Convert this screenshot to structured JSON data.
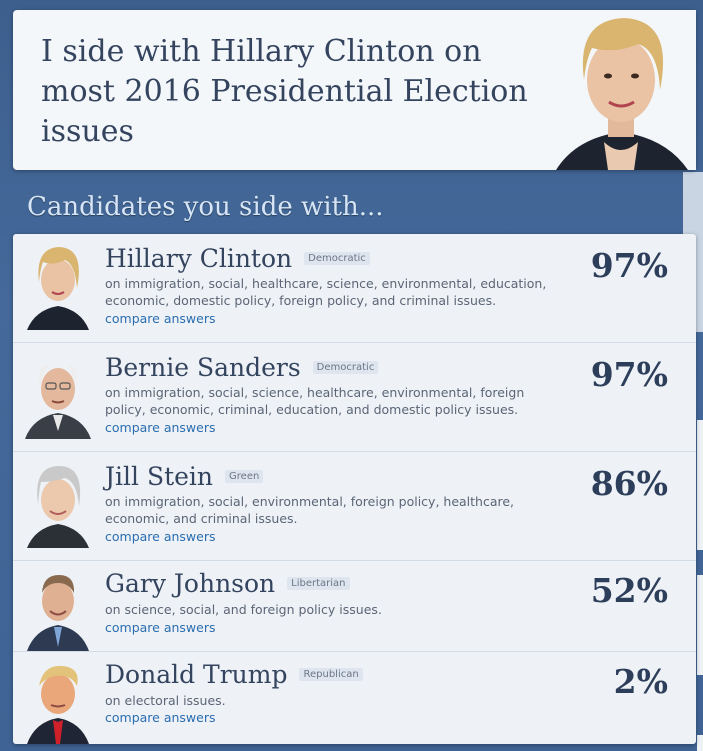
{
  "hero": {
    "text": "I side with Hillary Clinton on most 2016 Presidential Election issues"
  },
  "section_title": "Candidates you side with...",
  "candidates": [
    {
      "name": "Hillary Clinton",
      "party": "Democratic",
      "issues": "on immigration, social, healthcare, science, environmental, education, economic, domestic policy, foreign policy, and criminal issues.",
      "link": "compare answers",
      "percent": "97%",
      "portrait": "hillary-clinton-photo"
    },
    {
      "name": "Bernie Sanders",
      "party": "Democratic",
      "issues": "on immigration, social, science, healthcare, environmental, foreign policy, economic, criminal, education, and domestic policy issues.",
      "link": "compare answers",
      "percent": "97%",
      "portrait": "bernie-sanders-photo"
    },
    {
      "name": "Jill Stein",
      "party": "Green",
      "issues": "on immigration, social, environmental, foreign policy, healthcare, economic, and criminal issues.",
      "link": "compare answers",
      "percent": "86%",
      "portrait": "jill-stein-photo"
    },
    {
      "name": "Gary Johnson",
      "party": "Libertarian",
      "issues": "on science, social, and foreign policy issues.",
      "link": "compare answers",
      "percent": "52%",
      "portrait": "gary-johnson-photo"
    },
    {
      "name": "Donald Trump",
      "party": "Republican",
      "issues": "on electoral issues.",
      "link": "compare answers",
      "percent": "2%",
      "portrait": "donald-trump-photo"
    }
  ],
  "colors": {
    "background": "#44699a",
    "card": "#eef2f7",
    "title_text": "#34445e",
    "link": "#2a6db0"
  }
}
